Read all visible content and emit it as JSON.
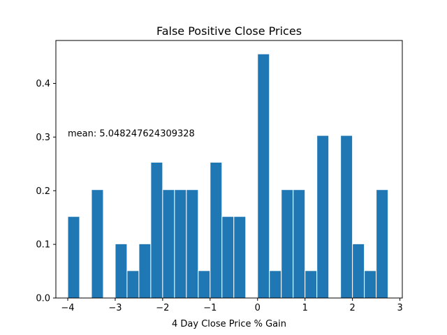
{
  "chart_data": {
    "type": "bar",
    "title": "False Positive Close Prices",
    "xlabel": "4 Day Close Price % Gain",
    "ylabel": "",
    "xlim": [
      -4.25,
      3.05
    ],
    "ylim": [
      0,
      0.48
    ],
    "xticks": [
      -4,
      -3,
      -2,
      -1,
      0,
      1,
      2,
      3
    ],
    "yticks": [
      0.0,
      0.1,
      0.2,
      0.3,
      0.4
    ],
    "bin_width": 0.25,
    "bins": [
      {
        "x": -4.0,
        "value": 0.152
      },
      {
        "x": -3.5,
        "value": 0.202
      },
      {
        "x": -3.0,
        "value": 0.101
      },
      {
        "x": -2.75,
        "value": 0.051
      },
      {
        "x": -2.5,
        "value": 0.101
      },
      {
        "x": -2.25,
        "value": 0.253
      },
      {
        "x": -2.0,
        "value": 0.202
      },
      {
        "x": -1.75,
        "value": 0.202
      },
      {
        "x": -1.5,
        "value": 0.202
      },
      {
        "x": -1.25,
        "value": 0.051
      },
      {
        "x": -1.0,
        "value": 0.253
      },
      {
        "x": -0.75,
        "value": 0.152
      },
      {
        "x": -0.5,
        "value": 0.152
      },
      {
        "x": 0.0,
        "value": 0.455
      },
      {
        "x": 0.25,
        "value": 0.051
      },
      {
        "x": 0.5,
        "value": 0.202
      },
      {
        "x": 0.75,
        "value": 0.202
      },
      {
        "x": 1.0,
        "value": 0.051
      },
      {
        "x": 1.25,
        "value": 0.303
      },
      {
        "x": 1.75,
        "value": 0.303
      },
      {
        "x": 2.0,
        "value": 0.101
      },
      {
        "x": 2.25,
        "value": 0.051
      },
      {
        "x": 2.5,
        "value": 0.202
      }
    ],
    "annotation": "mean: 5.048247624309328",
    "annotation_anchor": {
      "x": -4.0,
      "y": 0.3
    },
    "bar_color": "#1f77b4",
    "grid": false,
    "legend": "none"
  }
}
